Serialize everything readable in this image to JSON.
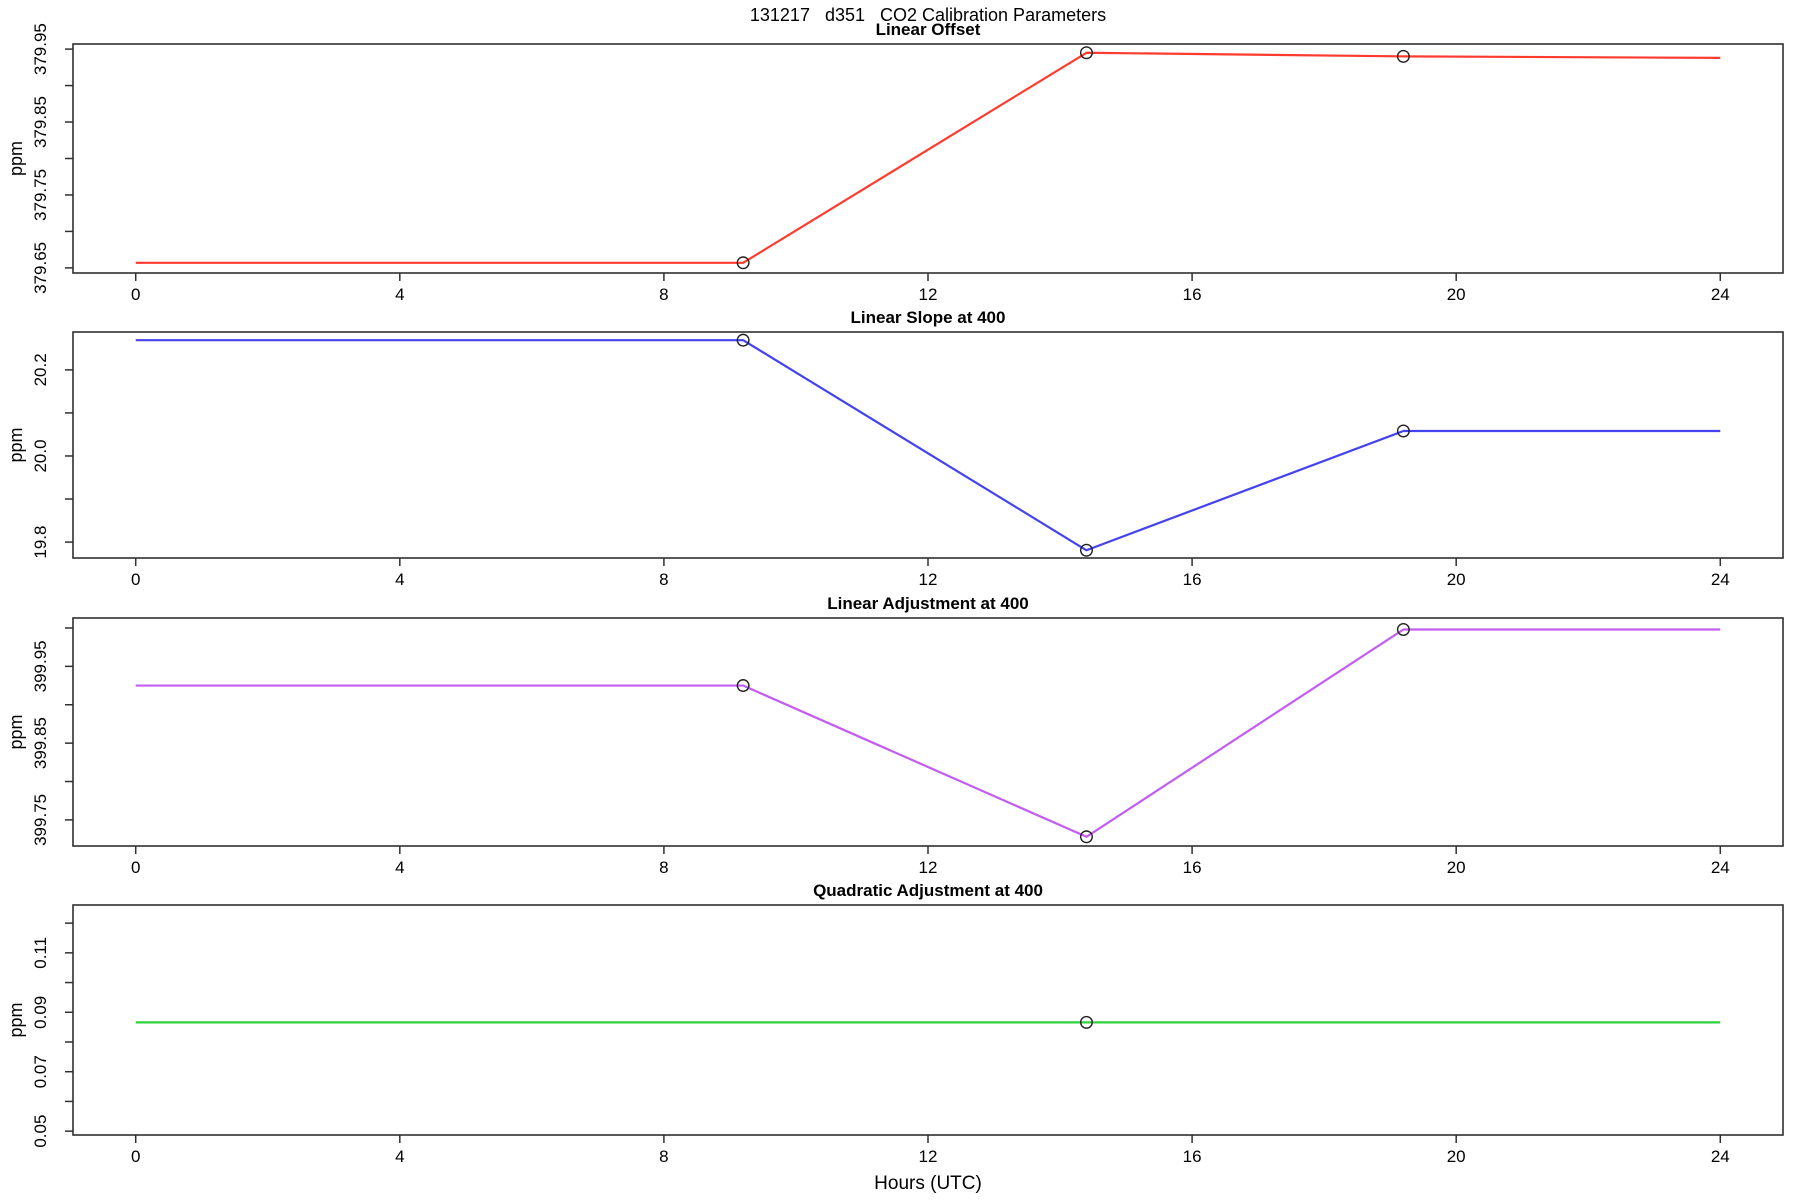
{
  "page_title": "131217   d351   CO2 Calibration Parameters",
  "xlabel": "Hours (UTC)",
  "axis_color": "#303030",
  "marker": {
    "shape": "open-circle",
    "color": "#222222"
  },
  "chart_data": [
    {
      "type": "line",
      "title": "Linear Offset",
      "ylabel": "ppm",
      "color": "#ff3b30",
      "x": [
        0,
        9.2,
        14.4,
        19.2,
        24
      ],
      "y": [
        379.657,
        379.657,
        379.945,
        379.94,
        379.938
      ],
      "marker_x": [
        9.2,
        14.4,
        19.2
      ],
      "marker_y": [
        379.657,
        379.945,
        379.94
      ],
      "xlim": [
        -0.95,
        24.95
      ],
      "ylim": [
        379.643,
        379.957
      ],
      "xticks": [
        "0",
        "4",
        "8",
        "12",
        "16",
        "20",
        "24"
      ],
      "xtick_values": [
        0,
        4,
        8,
        12,
        16,
        20,
        24
      ],
      "ytick_values": [
        379.65,
        379.7,
        379.75,
        379.8,
        379.85,
        379.9,
        379.95
      ],
      "ytick_labels": [
        "379.65",
        "",
        "379.75",
        "",
        "379.85",
        "",
        "379.95"
      ],
      "grid": false,
      "legend": null
    },
    {
      "type": "line",
      "title": "Linear Slope at 400",
      "ylabel": "ppm",
      "color": "#4343f0",
      "x": [
        0,
        9.2,
        14.4,
        19.2,
        24
      ],
      "y": [
        20.269,
        20.269,
        19.781,
        20.058,
        20.058
      ],
      "marker_x": [
        9.2,
        14.4,
        19.2
      ],
      "marker_y": [
        20.269,
        19.781,
        20.058
      ],
      "xlim": [
        -0.95,
        24.95
      ],
      "ylim": [
        19.763,
        20.288
      ],
      "xticks": [
        "0",
        "4",
        "8",
        "12",
        "16",
        "20",
        "24"
      ],
      "xtick_values": [
        0,
        4,
        8,
        12,
        16,
        20,
        24
      ],
      "ytick_values": [
        19.8,
        19.9,
        20.0,
        20.1,
        20.2
      ],
      "ytick_labels": [
        "19.8",
        "",
        "20.0",
        "",
        "20.2"
      ],
      "grid": false,
      "legend": null
    },
    {
      "type": "line",
      "title": "Linear Adjustment at 400",
      "ylabel": "ppm",
      "color": "#c35df2",
      "x": [
        0,
        9.2,
        14.4,
        19.2,
        24
      ],
      "y": [
        399.925,
        399.925,
        399.728,
        399.998,
        399.998
      ],
      "marker_x": [
        9.2,
        14.4,
        19.2
      ],
      "marker_y": [
        399.925,
        399.728,
        399.998
      ],
      "xlim": [
        -0.95,
        24.95
      ],
      "ylim": [
        399.716,
        400.013
      ],
      "xticks": [
        "0",
        "4",
        "8",
        "12",
        "16",
        "20",
        "24"
      ],
      "xtick_values": [
        0,
        4,
        8,
        12,
        16,
        20,
        24
      ],
      "ytick_values": [
        399.75,
        399.8,
        399.85,
        399.9,
        399.95,
        400.0
      ],
      "ytick_labels": [
        "399.75",
        "",
        "399.85",
        "",
        "399.95",
        ""
      ],
      "grid": false,
      "legend": null
    },
    {
      "type": "line",
      "title": "Quadratic Adjustment at 400",
      "ylabel": "ppm",
      "color": "#2ed23c",
      "x": [
        0,
        24
      ],
      "y": [
        0.0866,
        0.0866
      ],
      "marker_x": [
        14.4
      ],
      "marker_y": [
        0.0866
      ],
      "xlim": [
        -0.95,
        24.95
      ],
      "ylim": [
        0.0487,
        0.1261
      ],
      "xticks": [
        "0",
        "4",
        "8",
        "12",
        "16",
        "20",
        "24"
      ],
      "xtick_values": [
        0,
        4,
        8,
        12,
        16,
        20,
        24
      ],
      "ytick_values": [
        0.05,
        0.06,
        0.07,
        0.08,
        0.09,
        0.1,
        0.11,
        0.12
      ],
      "ytick_labels": [
        "0.05",
        "",
        "0.07",
        "",
        "0.09",
        "",
        "0.11",
        ""
      ],
      "grid": false,
      "legend": null
    }
  ]
}
